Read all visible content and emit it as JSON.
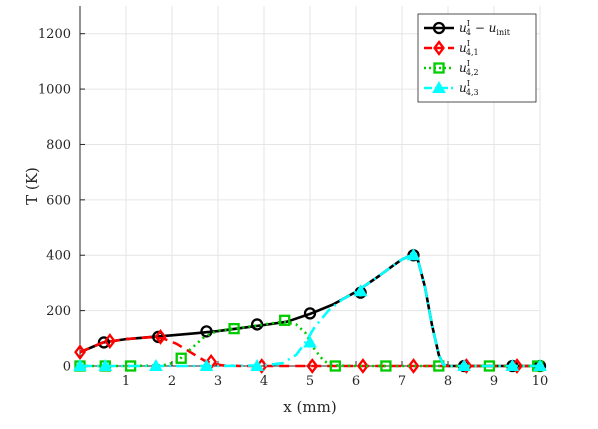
{
  "chart_data": {
    "type": "line",
    "title": "",
    "xlabel": "x (mm)",
    "ylabel": "T (K)",
    "xlim": [
      0,
      10
    ],
    "ylim": [
      0,
      1300
    ],
    "xticks": [
      1,
      2,
      3,
      4,
      5,
      6,
      7,
      8,
      9,
      10
    ],
    "yticks": [
      0,
      200,
      400,
      600,
      800,
      1000,
      1200
    ],
    "grid": true,
    "legend_position": "top-right",
    "series": [
      {
        "name": "u4I - uinit",
        "legend": {
          "base": "u",
          "sub": "4",
          "sup": "I",
          "suffix": " − u",
          "suffix_sub": "init"
        },
        "color": "#000000",
        "line_style": "solid",
        "marker": "circle",
        "x": [
          0.0,
          0.5,
          1.0,
          1.5,
          2.0,
          2.5,
          3.0,
          3.5,
          4.0,
          4.5,
          5.0,
          5.5,
          6.0,
          6.5,
          6.8,
          7.0,
          7.2,
          7.35,
          7.5,
          7.65,
          7.8,
          7.9,
          8.0,
          8.5,
          9.0,
          9.5,
          10.0
        ],
        "y": [
          50,
          85,
          97,
          104,
          111,
          118,
          126,
          137,
          148,
          160,
          188,
          222,
          268,
          325,
          362,
          385,
          400,
          380,
          285,
          150,
          40,
          5,
          0,
          0,
          0,
          0,
          0
        ],
        "marker_x": [
          0.52,
          1.7,
          2.75,
          3.85,
          5.0,
          6.1,
          7.25,
          8.35,
          9.4,
          10.0
        ],
        "marker_y": [
          85,
          105,
          125,
          150,
          190,
          265,
          400,
          0,
          0,
          0
        ]
      },
      {
        "name": "u4,1I",
        "legend": {
          "base": "u",
          "sub": "4,1",
          "sup": "I"
        },
        "color": "#ff0000",
        "line_style": "dashed",
        "marker": "diamond",
        "x": [
          0.0,
          0.5,
          1.0,
          1.5,
          1.8,
          2.1,
          2.4,
          2.7,
          2.9,
          3.1,
          3.5,
          4.0,
          5.0,
          6.0,
          7.0,
          8.0,
          9.0,
          10.0
        ],
        "y": [
          50,
          85,
          97,
          104,
          100,
          80,
          50,
          20,
          8,
          2,
          0,
          0,
          0,
          0,
          0,
          0,
          0,
          0
        ],
        "marker_x": [
          0.0,
          0.65,
          1.75,
          2.85,
          3.95,
          5.05,
          6.15,
          7.25,
          8.4,
          9.5
        ],
        "marker_y": [
          50,
          90,
          105,
          15,
          0,
          0,
          0,
          0,
          0,
          0
        ]
      },
      {
        "name": "u4,2I",
        "legend": {
          "base": "u",
          "sub": "4,2",
          "sup": "I"
        },
        "color": "#00cc00",
        "line_style": "dotted",
        "marker": "square",
        "x": [
          0.0,
          1.0,
          1.8,
          2.1,
          2.4,
          2.7,
          3.0,
          3.5,
          4.0,
          4.4,
          4.7,
          4.9,
          5.1,
          5.3,
          5.5,
          6.0,
          7.0,
          8.0,
          9.0,
          10.0
        ],
        "y": [
          0,
          0,
          2,
          15,
          60,
          105,
          128,
          138,
          150,
          160,
          150,
          120,
          60,
          18,
          2,
          0,
          0,
          0,
          0,
          0
        ],
        "marker_x": [
          0.0,
          0.55,
          1.1,
          2.2,
          3.35,
          4.45,
          5.55,
          6.65,
          7.8,
          8.9,
          9.95
        ],
        "marker_y": [
          0,
          0,
          0,
          28,
          135,
          165,
          0,
          0,
          0,
          0,
          0
        ]
      },
      {
        "name": "u4,3I",
        "legend": {
          "base": "u",
          "sub": "4,3",
          "sup": "I"
        },
        "color": "#00ffff",
        "line_style": "dashdot",
        "marker": "triangle",
        "x": [
          0.0,
          1.0,
          2.0,
          3.0,
          4.0,
          4.4,
          4.7,
          4.9,
          5.1,
          5.4,
          5.7,
          6.0,
          6.5,
          6.8,
          7.0,
          7.2,
          7.35,
          7.5,
          7.65,
          7.8,
          7.9,
          8.0,
          9.0,
          10.0
        ],
        "y": [
          0,
          0,
          0,
          0,
          2,
          10,
          40,
          85,
          140,
          200,
          240,
          268,
          325,
          362,
          385,
          400,
          380,
          285,
          150,
          40,
          5,
          0,
          0,
          0
        ],
        "marker_x": [
          0.0,
          0.55,
          1.65,
          2.75,
          3.85,
          5.0,
          6.1,
          7.25,
          8.35,
          9.4,
          10.0
        ],
        "marker_y": [
          0,
          0,
          0,
          0,
          0,
          85,
          270,
          400,
          0,
          0,
          0
        ]
      }
    ]
  }
}
